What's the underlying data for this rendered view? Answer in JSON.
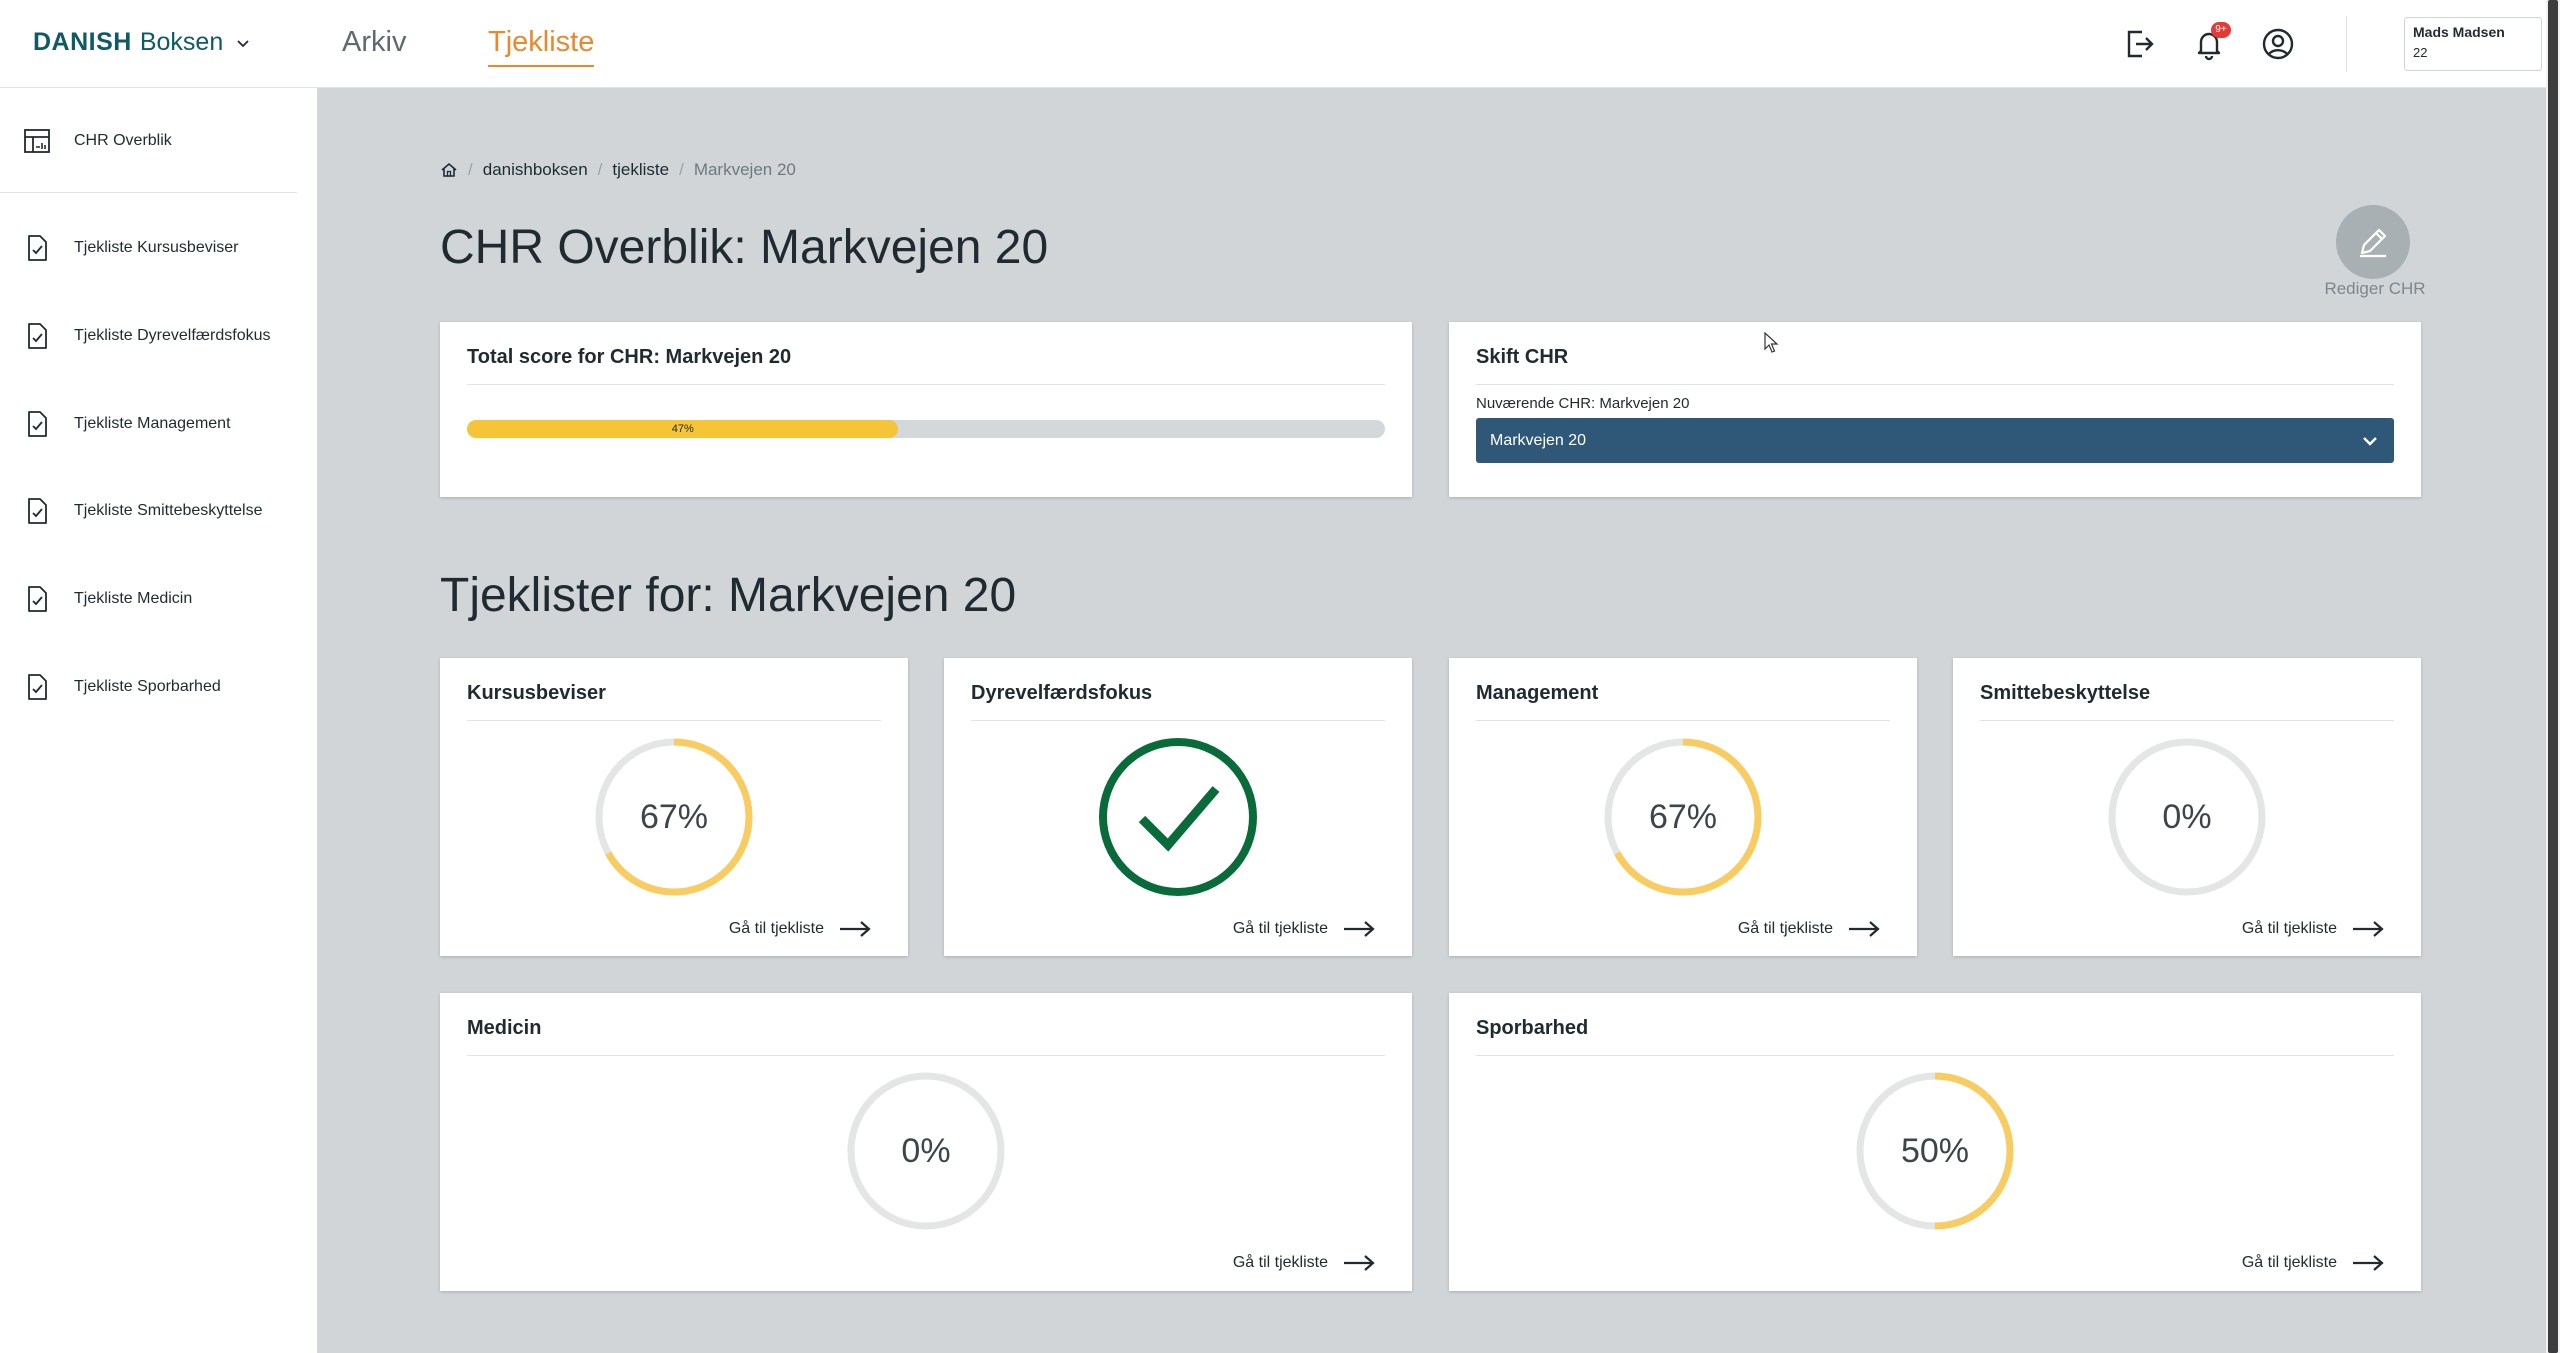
{
  "header": {
    "brand_bold": "DANISH",
    "brand_light": "Boksen",
    "nav": [
      {
        "label": "Arkiv"
      },
      {
        "label": "Tjekliste"
      }
    ],
    "notification_badge": "9+",
    "user_name": "Mads Madsen",
    "user_sub": "22"
  },
  "sidebar": {
    "items": [
      {
        "label": "CHR Overblik",
        "icon": "table-chart-icon"
      },
      {
        "label": "Tjekliste Kursusbeviser",
        "icon": "document-check-icon"
      },
      {
        "label": "Tjekliste Dyrevelfærdsfokus",
        "icon": "document-check-icon"
      },
      {
        "label": "Tjekliste Management",
        "icon": "document-check-icon"
      },
      {
        "label": "Tjekliste Smittebeskyttelse",
        "icon": "document-check-icon"
      },
      {
        "label": "Tjekliste Medicin",
        "icon": "document-check-icon"
      },
      {
        "label": "Tjekliste Sporbarhed",
        "icon": "document-check-icon"
      }
    ]
  },
  "breadcrumb": {
    "items": [
      "danishboksen",
      "tjekliste"
    ],
    "current": "Markvejen 20"
  },
  "page": {
    "title": "CHR Overblik: Markvejen 20",
    "edit_label": "Rediger CHR",
    "section_title": "Tjeklister for: Markvejen 20"
  },
  "total_score": {
    "title": "Total score for CHR: Markvejen 20",
    "value": 47,
    "label": "47%"
  },
  "skift_chr": {
    "title": "Skift CHR",
    "current_label": "Nuværende CHR: Markvejen 20",
    "selected": "Markvejen 20"
  },
  "checklists": [
    {
      "title": "Kursusbeviser",
      "percent": 67,
      "label": "67%",
      "complete": false,
      "link": "Gå til tjekliste"
    },
    {
      "title": "Dyrevelfærdsfokus",
      "percent": 100,
      "label": "",
      "complete": true,
      "link": "Gå til tjekliste"
    },
    {
      "title": "Management",
      "percent": 67,
      "label": "67%",
      "complete": false,
      "link": "Gå til tjekliste"
    },
    {
      "title": "Smittebeskyttelse",
      "percent": 0,
      "label": "0%",
      "complete": false,
      "link": "Gå til tjekliste"
    },
    {
      "title": "Medicin",
      "percent": 0,
      "label": "0%",
      "complete": false,
      "link": "Gå til tjekliste"
    },
    {
      "title": "Sporbarhed",
      "percent": 50,
      "label": "50%",
      "complete": false,
      "link": "Gå til tjekliste"
    }
  ],
  "colors": {
    "accent_orange": "#e8892e",
    "gauge_yellow": "#f9cc61",
    "gauge_track": "#e3e6e5",
    "complete_green": "#0a6b3a",
    "select_blue": "#2f5777"
  }
}
